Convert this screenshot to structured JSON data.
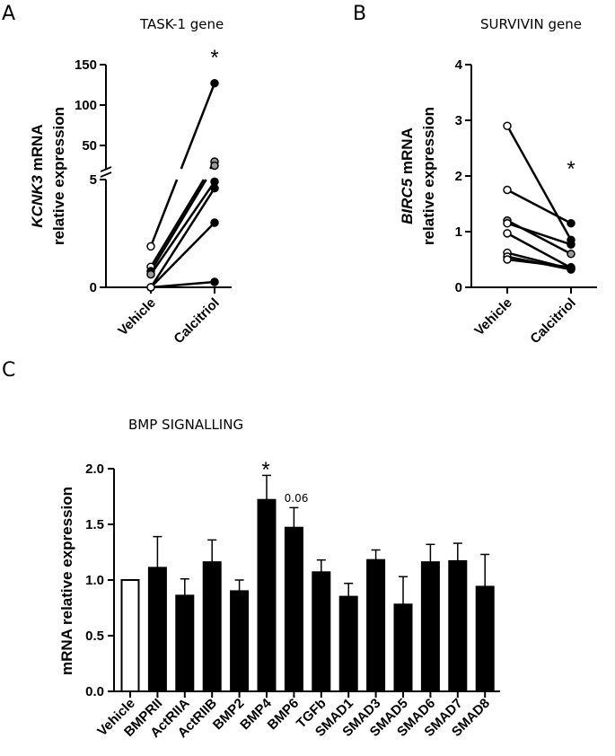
{
  "panels": {
    "a": {
      "letter": "A",
      "title": "TASK-1 gene",
      "ylabel_italic": "KCNK3",
      "ylabel_rest": " mRNA",
      "ylabel_line2": "relative expression",
      "categories": [
        "Vehicle",
        "Calcitriol"
      ],
      "significance": "*"
    },
    "b": {
      "letter": "B",
      "title": "SURVIVIN gene",
      "ylabel_italic": "BIRC5",
      "ylabel_rest": " mRNA",
      "ylabel_line2": "relative expression",
      "categories": [
        "Vehicle",
        "Calcitriol"
      ],
      "significance": "*"
    },
    "c": {
      "letter": "C",
      "title": "BMP SIGNALLING",
      "ylabel": "mRNA relative expression",
      "annotation_bmp4": "*",
      "annotation_bmp6": "0.06"
    }
  },
  "colors": {
    "open_fill": "#ffffff",
    "filled": "#000000",
    "grey": "#9a9a9a",
    "bar": "#000000"
  },
  "chart_data": [
    {
      "id": "A",
      "type": "scatter",
      "subtype": "paired-before-after",
      "title": "TASK-1 gene",
      "ylabel": "KCNK3 mRNA relative expression",
      "categories": [
        "Vehicle",
        "Calcitriol"
      ],
      "y_axis": "broken",
      "lower_segment": {
        "range": [
          0,
          5
        ],
        "ticks": [
          "0",
          "5"
        ]
      },
      "upper_segment": {
        "range": [
          20,
          150
        ],
        "ticks": [
          "50",
          "100",
          "150"
        ]
      },
      "pairs": [
        {
          "vehicle": 1.9,
          "calcitriol": 127,
          "vehicle_marker": "open",
          "calcitriol_marker": "filled"
        },
        {
          "vehicle": 0.95,
          "calcitriol": 30,
          "vehicle_marker": "open",
          "calcitriol_marker": "grey"
        },
        {
          "vehicle": 0.75,
          "calcitriol": 25,
          "vehicle_marker": "filled",
          "calcitriol_marker": "grey"
        },
        {
          "vehicle": 0.6,
          "calcitriol": 4.9,
          "vehicle_marker": "grey",
          "calcitriol_marker": "filled"
        },
        {
          "vehicle": 0.0,
          "calcitriol": 4.6,
          "vehicle_marker": "open",
          "calcitriol_marker": "filled"
        },
        {
          "vehicle": 0.0,
          "calcitriol": 3.0,
          "vehicle_marker": "open",
          "calcitriol_marker": "filled"
        },
        {
          "vehicle": 0.0,
          "calcitriol": 0.25,
          "vehicle_marker": "open",
          "calcitriol_marker": "filled"
        }
      ],
      "annotation": "*"
    },
    {
      "id": "B",
      "type": "scatter",
      "subtype": "paired-before-after",
      "title": "SURVIVIN gene",
      "ylabel": "BIRC5 mRNA relative expression",
      "categories": [
        "Vehicle",
        "Calcitriol"
      ],
      "ylim": [
        0,
        4
      ],
      "yticks": [
        0,
        1,
        2,
        3,
        4
      ],
      "pairs": [
        {
          "vehicle": 2.9,
          "calcitriol": 0.85,
          "vehicle_marker": "open",
          "calcitriol_marker": "filled"
        },
        {
          "vehicle": 1.75,
          "calcitriol": 1.15,
          "vehicle_marker": "open",
          "calcitriol_marker": "filled"
        },
        {
          "vehicle": 1.2,
          "calcitriol": 0.6,
          "vehicle_marker": "grey",
          "calcitriol_marker": "grey"
        },
        {
          "vehicle": 1.15,
          "calcitriol": 0.77,
          "vehicle_marker": "open",
          "calcitriol_marker": "filled"
        },
        {
          "vehicle": 0.97,
          "calcitriol": 0.35,
          "vehicle_marker": "open",
          "calcitriol_marker": "filled"
        },
        {
          "vehicle": 0.62,
          "calcitriol": 0.33,
          "vehicle_marker": "open",
          "calcitriol_marker": "filled"
        },
        {
          "vehicle": 0.55,
          "calcitriol": 0.32,
          "vehicle_marker": "open",
          "calcitriol_marker": "filled"
        },
        {
          "vehicle": 0.5,
          "calcitriol": 0.36,
          "vehicle_marker": "open",
          "calcitriol_marker": "filled"
        }
      ],
      "annotation": "*"
    },
    {
      "id": "C",
      "type": "bar",
      "title": "BMP SIGNALLING",
      "ylabel": "mRNA relative expression",
      "ylim": [
        0,
        2.0
      ],
      "yticks": [
        "0.0",
        "0.5",
        "1.0",
        "1.5",
        "2.0"
      ],
      "categories": [
        "Vehicle",
        "BMPRII",
        "ActRIIA",
        "ActRIIB",
        "BMP2",
        "BMP4",
        "BMP6",
        "TGFb",
        "SMAD1",
        "SMAD3",
        "SMAD5",
        "SMAD6",
        "SMAD7",
        "SMAD8"
      ],
      "values": [
        1.0,
        1.11,
        0.86,
        1.16,
        0.9,
        1.72,
        1.47,
        1.07,
        0.85,
        1.18,
        0.78,
        1.16,
        1.17,
        0.94
      ],
      "errors": [
        0,
        0.28,
        0.15,
        0.2,
        0.1,
        0.22,
        0.18,
        0.11,
        0.12,
        0.09,
        0.25,
        0.16,
        0.16,
        0.29
      ],
      "bar_fill": [
        "open",
        "filled",
        "filled",
        "filled",
        "filled",
        "filled",
        "filled",
        "filled",
        "filled",
        "filled",
        "filled",
        "filled",
        "filled",
        "filled"
      ],
      "annotations": [
        {
          "category": "BMP4",
          "text": "*"
        },
        {
          "category": "BMP6",
          "text": "0.06"
        }
      ]
    }
  ]
}
